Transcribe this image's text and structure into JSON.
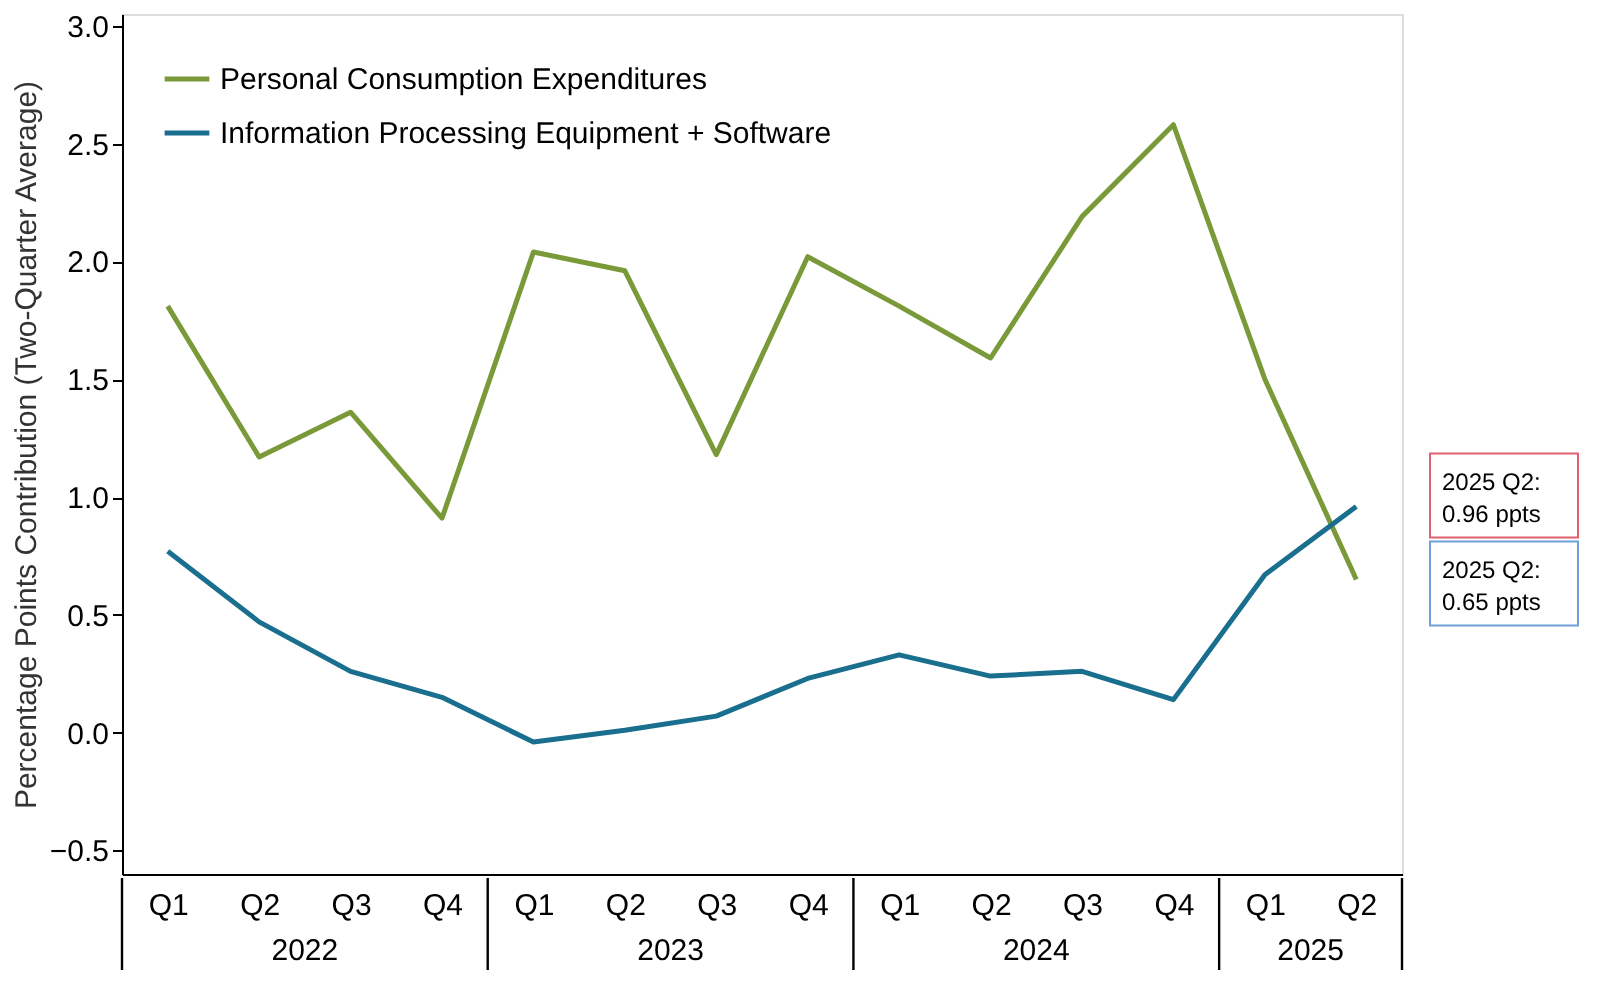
{
  "chart_data": {
    "type": "line",
    "ylabel": "Percentage Points Contribution (Two-Quarter Average)",
    "categories": [
      "Q1",
      "Q2",
      "Q3",
      "Q4",
      "Q1",
      "Q2",
      "Q3",
      "Q4",
      "Q1",
      "Q2",
      "Q3",
      "Q4",
      "Q1",
      "Q2"
    ],
    "series": [
      {
        "name": "Personal Consumption Expenditures",
        "color": "#7a9a3a",
        "values": [
          1.81,
          1.17,
          1.36,
          0.91,
          2.04,
          1.96,
          1.18,
          2.02,
          1.81,
          1.59,
          2.19,
          2.58,
          1.5,
          0.65
        ]
      },
      {
        "name": "Information Processing Equipment + Software",
        "color": "#1a6f8f",
        "values": [
          0.77,
          0.47,
          0.26,
          0.15,
          -0.04,
          0.01,
          0.07,
          0.23,
          0.33,
          0.24,
          0.26,
          0.14,
          0.67,
          0.96
        ]
      }
    ],
    "ylim": [
      -0.6,
      3.05
    ],
    "yticks": [
      -0.5,
      {
        "value": 0,
        "label": "0.0"
      },
      0.5,
      {
        "value": 1,
        "label": "1.0"
      },
      1.5,
      {
        "value": 2,
        "label": "2.0"
      },
      2.5,
      {
        "value": 3,
        "label": "3.0"
      }
    ],
    "annotations": [
      "2022",
      "2023",
      "2024",
      "2025",
      "2025 Q2:\n0.96 ppts",
      "2025 Q2:\n0.65 ppts"
    ],
    "legend": "top left",
    "grid": false,
    "line_style": "solid",
    "marker": "none"
  }
}
